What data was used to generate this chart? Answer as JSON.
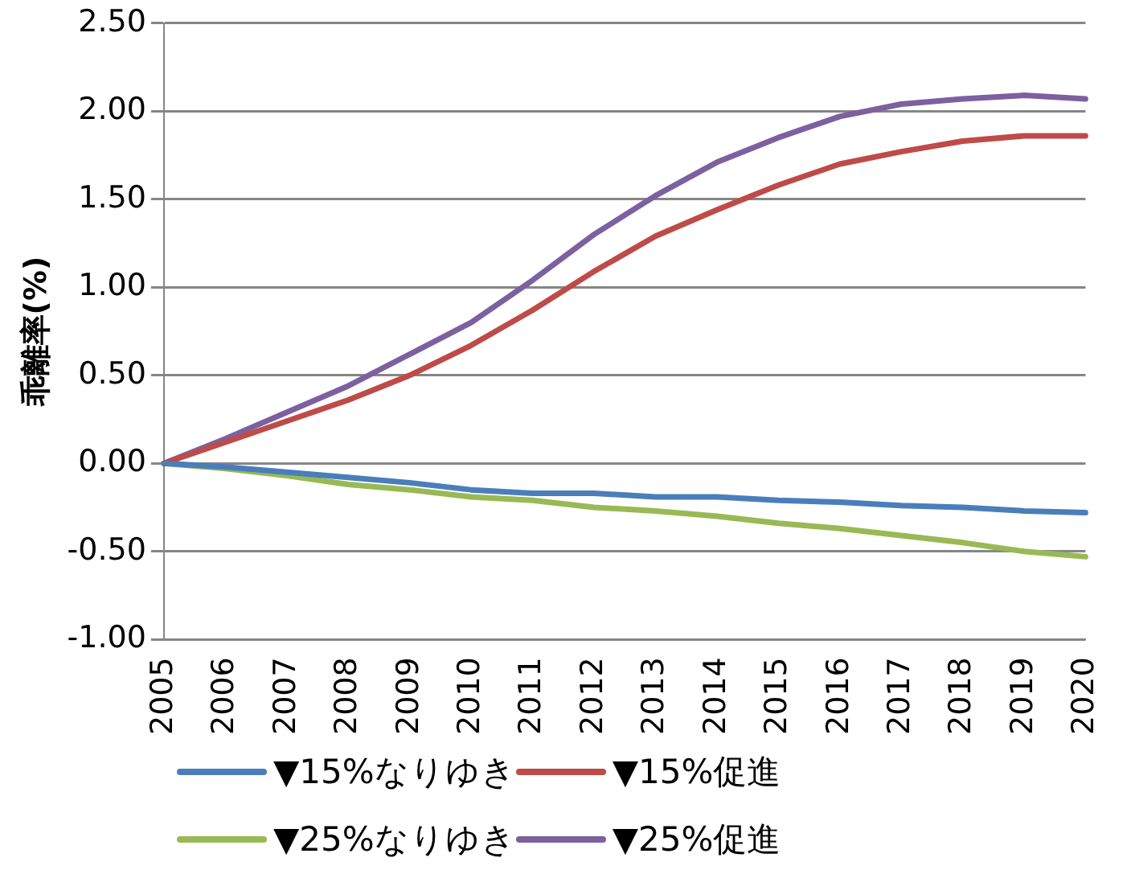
{
  "chart_data": {
    "type": "line",
    "ylabel": "乖離率(%)",
    "categories": [
      "2005",
      "2006",
      "2007",
      "2008",
      "2009",
      "2010",
      "2011",
      "2012",
      "2013",
      "2014",
      "2015",
      "2016",
      "2017",
      "2018",
      "2019",
      "2020"
    ],
    "series": [
      {
        "name": "▼15%なりゆき",
        "color": "#4a7ebb",
        "values": [
          0,
          -0.02,
          -0.05,
          -0.08,
          -0.11,
          -0.15,
          -0.17,
          -0.17,
          -0.19,
          -0.19,
          -0.21,
          -0.22,
          -0.24,
          -0.25,
          -0.27,
          -0.28
        ]
      },
      {
        "name": "▼15%促進",
        "color": "#be4b48",
        "values": [
          0,
          0.12,
          0.24,
          0.36,
          0.5,
          0.67,
          0.87,
          1.09,
          1.29,
          1.44,
          1.58,
          1.7,
          1.77,
          1.83,
          1.86,
          1.86
        ]
      },
      {
        "name": "▼25%なりゆき",
        "color": "#98b954",
        "values": [
          0,
          -0.03,
          -0.07,
          -0.12,
          -0.15,
          -0.19,
          -0.21,
          -0.25,
          -0.27,
          -0.3,
          -0.34,
          -0.37,
          -0.41,
          -0.45,
          -0.5,
          -0.53
        ]
      },
      {
        "name": "▼25%促進",
        "color": "#7d60a0",
        "values": [
          0,
          0.14,
          0.29,
          0.44,
          0.62,
          0.8,
          1.04,
          1.3,
          1.52,
          1.71,
          1.85,
          1.97,
          2.04,
          2.07,
          2.09,
          2.07
        ]
      }
    ],
    "ylim": [
      -1,
      2.5
    ],
    "yticks": [
      {
        "value": -1,
        "label": "-1.00"
      },
      {
        "value": -0.5,
        "label": "-0.50"
      },
      {
        "value": 0,
        "label": "0.00"
      },
      {
        "value": 0.5,
        "label": "0.50"
      },
      {
        "value": 1,
        "label": "1.00"
      },
      {
        "value": 1.5,
        "label": "1.50"
      },
      {
        "value": 2,
        "label": "2.00"
      },
      {
        "value": 2.5,
        "label": "2.50"
      }
    ],
    "grid": "y",
    "legend": "bottom",
    "marker": "none",
    "line_style": "solid"
  }
}
